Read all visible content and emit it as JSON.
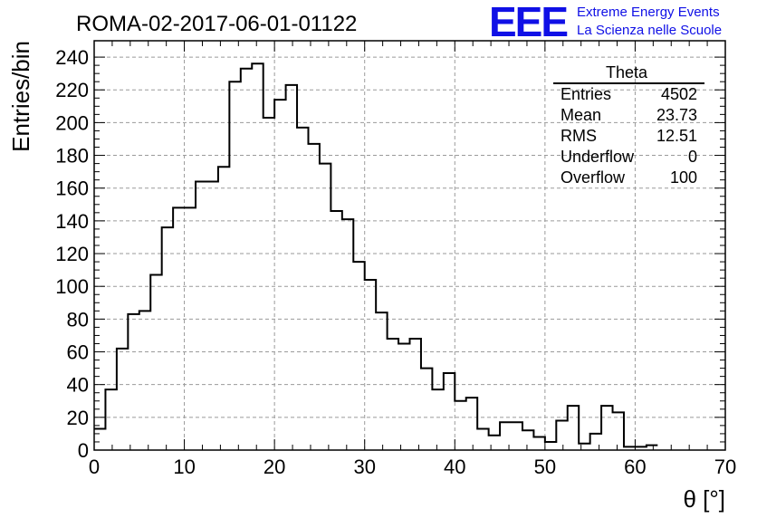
{
  "title": "ROMA-02-2017-06-01-01122",
  "logo": {
    "mark": "EEE",
    "line1": "Extreme Energy Events",
    "line2": "La Scienza nelle Scuole",
    "color": "#1010e6"
  },
  "stats": {
    "name": "Theta",
    "rows": [
      {
        "label": "Entries",
        "value": "4502"
      },
      {
        "label": "Mean",
        "value": "23.73"
      },
      {
        "label": "RMS",
        "value": "12.51"
      },
      {
        "label": "Underflow",
        "value": "0"
      },
      {
        "label": "Overflow",
        "value": "100"
      }
    ]
  },
  "chart_data": {
    "type": "histogram",
    "title": "ROMA-02-2017-06-01-01122",
    "xlabel": "θ [°]",
    "ylabel": "Entries/bin",
    "xlim": [
      0,
      70
    ],
    "ylim": [
      0,
      250
    ],
    "bin_width": 1.25,
    "x_ticks": [
      0,
      10,
      20,
      30,
      40,
      50,
      60,
      70
    ],
    "y_ticks": [
      0,
      20,
      40,
      60,
      80,
      100,
      120,
      140,
      160,
      180,
      200,
      220,
      240
    ],
    "grid": true,
    "line_color": "#000000",
    "values": [
      13,
      37,
      62,
      83,
      85,
      107,
      136,
      148,
      148,
      164,
      164,
      173,
      225,
      233,
      236,
      203,
      214,
      223,
      197,
      187,
      175,
      146,
      141,
      115,
      104,
      84,
      68,
      65,
      68,
      50,
      37,
      47,
      30,
      32,
      13,
      9,
      17,
      17,
      12,
      8,
      5,
      18,
      27,
      4,
      10,
      27,
      23,
      2,
      2,
      3
    ]
  }
}
